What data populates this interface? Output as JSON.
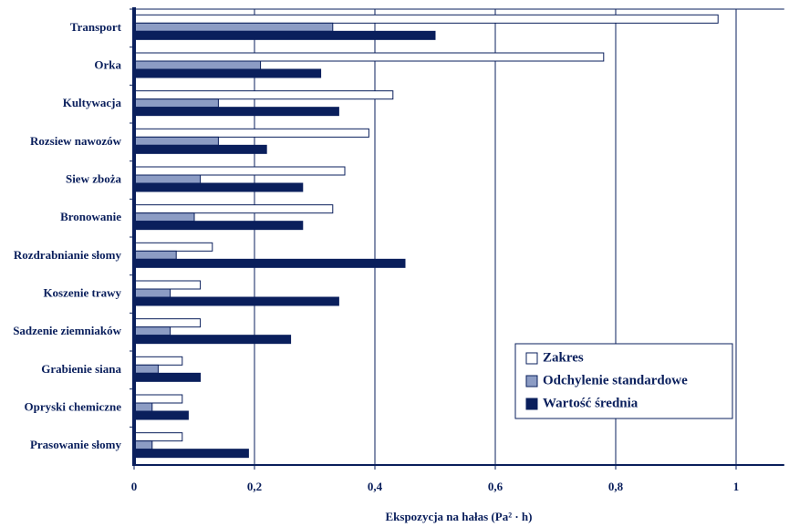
{
  "chart_data": {
    "type": "bar",
    "orientation": "horizontal",
    "x_label": "Ekspozycja na hałas (Pa² · h)",
    "categories": [
      "Transport",
      "Orka",
      "Kultywacja",
      "Rozsiew nawozów",
      "Siew zboża",
      "Bronowanie",
      "Rozdrabnianie słomy",
      "Koszenie trawy",
      "Sadzenie ziemniaków",
      "Grabienie siana",
      "Opryski chemiczne",
      "Prasowanie słomy"
    ],
    "series": [
      {
        "name": "Zakres",
        "color": "#ffffff",
        "values": [
          0.97,
          0.78,
          0.43,
          0.39,
          0.35,
          0.33,
          0.13,
          0.11,
          0.11,
          0.08,
          0.08,
          0.08
        ]
      },
      {
        "name": "Odchylenie standardowe",
        "color": "#8c9cc4",
        "values": [
          0.33,
          0.21,
          0.14,
          0.14,
          0.11,
          0.1,
          0.07,
          0.06,
          0.06,
          0.04,
          0.03,
          0.03
        ]
      },
      {
        "name": "Wartość średnia",
        "color": "#0a1f5c",
        "values": [
          0.5,
          0.31,
          0.34,
          0.22,
          0.28,
          0.28,
          0.45,
          0.34,
          0.26,
          0.11,
          0.09,
          0.19
        ]
      }
    ],
    "xlim": [
      0,
      1.08
    ],
    "xticks": [
      0,
      {
        "value": 0.2,
        "label": "0,2"
      },
      {
        "value": 0.4,
        "label": "0,4"
      },
      {
        "value": 0.6,
        "label": "0,6"
      },
      {
        "value": 0.8,
        "label": "0,8"
      },
      1
    ],
    "grid": true,
    "legend": "lower-right"
  }
}
